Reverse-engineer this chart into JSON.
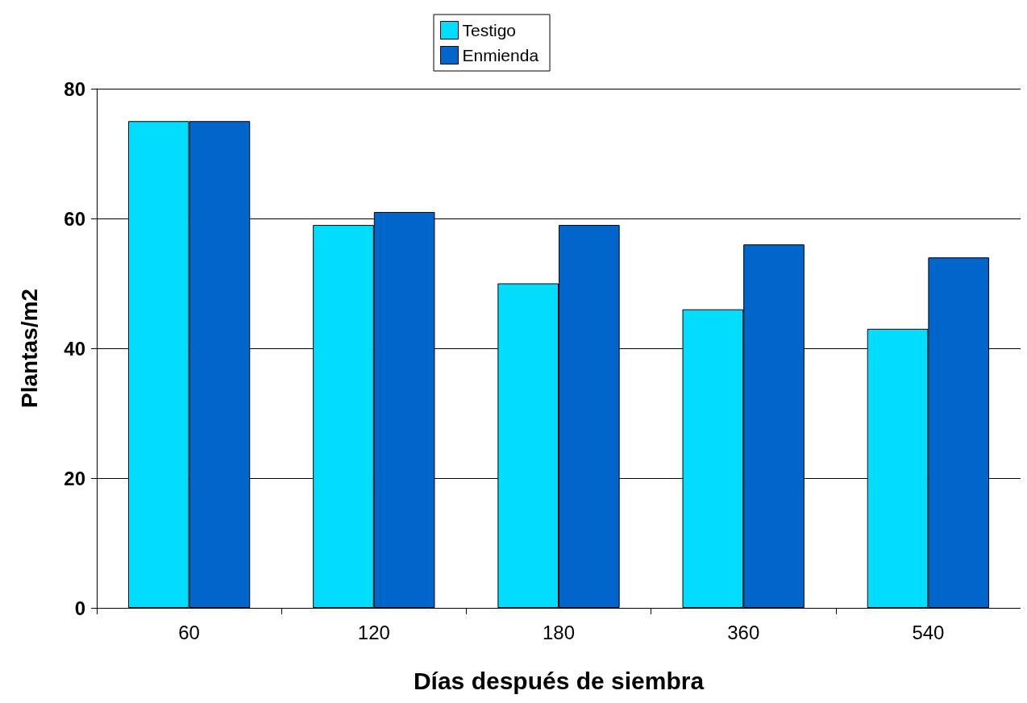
{
  "chart_data": {
    "type": "bar",
    "xlabel": "Días después de siembra",
    "ylabel": "Plantas/m2",
    "categories": [
      "60",
      "120",
      "180",
      "360",
      "540"
    ],
    "series": [
      {
        "name": "Testigo",
        "color": "#00ddff",
        "values": [
          75,
          59,
          50,
          46,
          43
        ]
      },
      {
        "name": "Enmienda",
        "color": "#0066cc",
        "values": [
          75,
          61,
          59,
          56,
          54
        ]
      }
    ],
    "ylim": [
      0,
      80
    ],
    "yticks": [
      0,
      20,
      40,
      60,
      80
    ],
    "grid": "y",
    "legend": "top"
  }
}
